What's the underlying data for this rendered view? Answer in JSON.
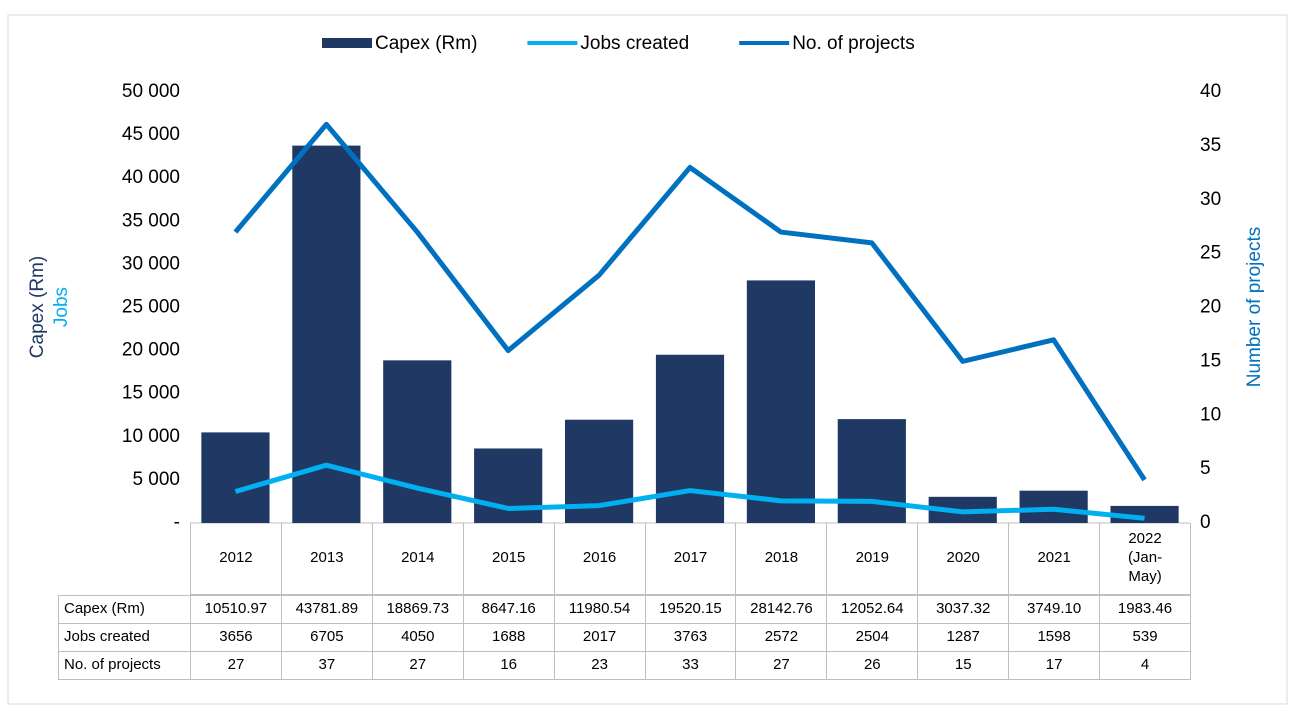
{
  "chart_data": {
    "type": "bar",
    "categories": [
      "2012",
      "2013",
      "2014",
      "2015",
      "2016",
      "2017",
      "2018",
      "2019",
      "2020",
      "2021",
      "2022 (Jan-May)"
    ],
    "series": [
      {
        "name": "Capex (Rm)",
        "type": "bar",
        "color": "#1f3864",
        "values": [
          10510.97,
          43781.89,
          18869.73,
          8647.16,
          11980.54,
          19520.15,
          28142.76,
          12052.64,
          3037.32,
          3749.1,
          1983.46
        ],
        "value_labels": [
          "10510.97",
          "43781.89",
          "18869.73",
          "8647.16",
          "11980.54",
          "19520.15",
          "28142.76",
          "12052.64",
          "3037.32",
          "3749.10",
          "1983.46"
        ]
      },
      {
        "name": "Jobs created",
        "type": "line",
        "color": "#00b0f0",
        "values": [
          3656,
          6705,
          4050,
          1688,
          2017,
          3763,
          2572,
          2504,
          1287,
          1598,
          539
        ]
      },
      {
        "name": "No. of projects",
        "type": "line",
        "axis": "y2",
        "color": "#0070c0",
        "values": [
          27,
          37,
          27,
          16,
          23,
          33,
          27,
          26,
          15,
          17,
          4
        ]
      }
    ],
    "ylabel": [
      "Capex (Rm)",
      "Jobs"
    ],
    "y2label": "Number of projects",
    "ylim": [
      0,
      50000
    ],
    "yticks": [
      {
        "value": 0,
        "label": "-"
      },
      {
        "value": 5000,
        "label": "5 000"
      },
      {
        "value": 10000,
        "label": "10 000"
      },
      {
        "value": 15000,
        "label": "15 000"
      },
      {
        "value": 20000,
        "label": "20 000"
      },
      {
        "value": 25000,
        "label": "25 000"
      },
      {
        "value": 30000,
        "label": "30 000"
      },
      {
        "value": 35000,
        "label": "35 000"
      },
      {
        "value": 40000,
        "label": "40 000"
      },
      {
        "value": 45000,
        "label": "45 000"
      },
      {
        "value": 50000,
        "label": "50 000"
      }
    ],
    "y2lim": [
      0,
      40
    ],
    "y2ticks": [
      0,
      5,
      10,
      15,
      20,
      25,
      30,
      35,
      40
    ],
    "legend": "top",
    "grid": false
  }
}
